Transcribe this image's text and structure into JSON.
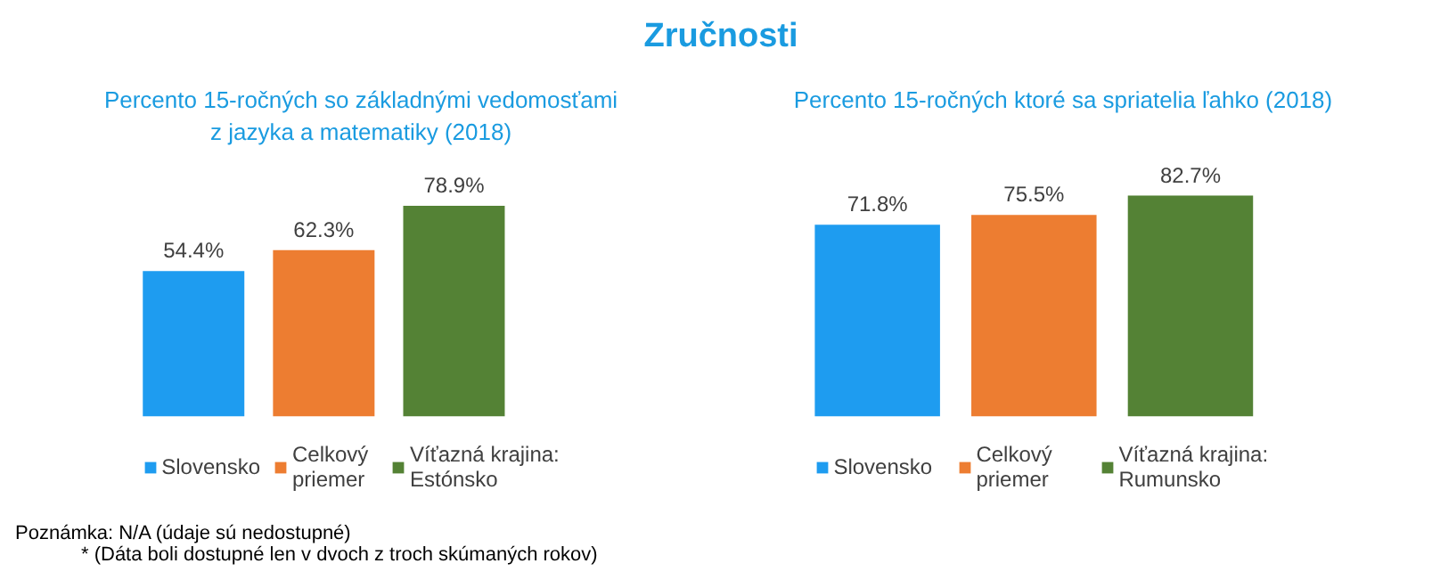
{
  "chart_data": [
    {
      "type": "other",
      "title": "Zručnosti",
      "annotations": [
        "Poznámka: N/A (údaje sú nedostupné)",
        "* (Dáta boli dostupné len v dvoch z troch skúmaných rokov)"
      ]
    },
    {
      "type": "bar",
      "title": "Percento 15-ročných so základnými vedomosťami\nz jazyka a matematiky (2018)",
      "categories": [
        null
      ],
      "legend": "bottom",
      "series": [
        {
          "name": "Slovensko",
          "color": "#1e9cf0",
          "values": [
            54.4
          ],
          "value_labels": [
            "54.4%"
          ]
        },
        {
          "name": "Celkový\npriemer",
          "color": "#ed7d31",
          "values": [
            62.3
          ],
          "value_labels": [
            "62.3%"
          ]
        },
        {
          "name": "Víťazná krajina:\nEstónsko",
          "color": "#548235",
          "values": [
            78.9
          ],
          "value_labels": [
            "78.9%"
          ]
        }
      ]
    },
    {
      "type": "bar",
      "title": "Percento 15-ročných ktoré sa spriatelia ľahko (2018)",
      "categories": [
        null
      ],
      "legend": "bottom",
      "series": [
        {
          "name": "Slovensko",
          "color": "#1e9cf0",
          "values": [
            71.8
          ],
          "value_labels": [
            "71.8%"
          ]
        },
        {
          "name": "Celkový\npriemer",
          "color": "#ed7d31",
          "values": [
            75.5
          ],
          "value_labels": [
            "75.5%"
          ]
        },
        {
          "name": "Víťazná krajina:\nRumunsko",
          "color": "#548235",
          "values": [
            82.7
          ],
          "value_labels": [
            "82.7%"
          ]
        }
      ]
    }
  ]
}
